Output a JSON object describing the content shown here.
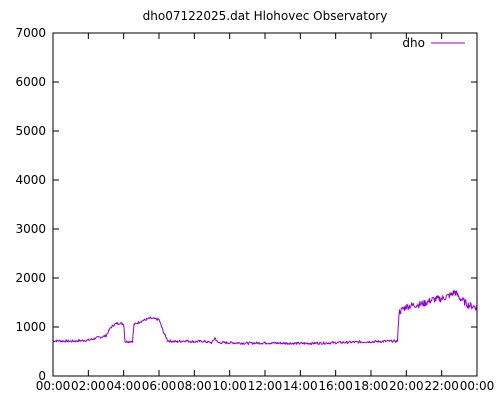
{
  "chart_data": {
    "type": "line",
    "title": "dho07122025.dat Hlohovec Observatory",
    "xlabel": "",
    "ylabel": "",
    "ylim": [
      0,
      7000
    ],
    "xlim": [
      "00:00",
      "24:00"
    ],
    "y_ticks": [
      0,
      1000,
      2000,
      3000,
      4000,
      5000,
      6000,
      7000
    ],
    "x_ticks": [
      "00:00",
      "02:00",
      "04:00",
      "06:00",
      "08:00",
      "10:00",
      "12:00",
      "14:00",
      "16:00",
      "18:00",
      "20:00",
      "22:00",
      "00:00"
    ],
    "grid": false,
    "legend_position": "top-right",
    "series": [
      {
        "name": "dho",
        "color": "#9400d3",
        "points": [
          [
            "00:00",
            720
          ],
          [
            "00:30",
            715
          ],
          [
            "01:00",
            710
          ],
          [
            "01:30",
            720
          ],
          [
            "02:00",
            730
          ],
          [
            "02:30",
            780
          ],
          [
            "03:00",
            820
          ],
          [
            "03:15",
            980
          ],
          [
            "03:30",
            1060
          ],
          [
            "03:45",
            1080
          ],
          [
            "04:00",
            1060
          ],
          [
            "04:05",
            700
          ],
          [
            "04:30",
            710
          ],
          [
            "04:35",
            1050
          ],
          [
            "05:00",
            1120
          ],
          [
            "05:30",
            1180
          ],
          [
            "06:00",
            1150
          ],
          [
            "06:15",
            900
          ],
          [
            "06:30",
            720
          ],
          [
            "07:00",
            700
          ],
          [
            "07:30",
            720
          ],
          [
            "08:00",
            700
          ],
          [
            "08:30",
            710
          ],
          [
            "09:00",
            680
          ],
          [
            "09:10",
            780
          ],
          [
            "09:20",
            680
          ],
          [
            "10:00",
            680
          ],
          [
            "11:00",
            670
          ],
          [
            "12:00",
            675
          ],
          [
            "13:00",
            670
          ],
          [
            "14:00",
            665
          ],
          [
            "15:00",
            670
          ],
          [
            "16:00",
            680
          ],
          [
            "17:00",
            690
          ],
          [
            "18:00",
            700
          ],
          [
            "19:00",
            710
          ],
          [
            "19:30",
            710
          ],
          [
            "19:35",
            1300
          ],
          [
            "20:00",
            1420
          ],
          [
            "20:30",
            1450
          ],
          [
            "21:00",
            1480
          ],
          [
            "21:30",
            1560
          ],
          [
            "22:00",
            1580
          ],
          [
            "22:30",
            1650
          ],
          [
            "22:45",
            1720
          ],
          [
            "23:00",
            1600
          ],
          [
            "23:30",
            1450
          ],
          [
            "24:00",
            1400
          ]
        ]
      }
    ]
  }
}
